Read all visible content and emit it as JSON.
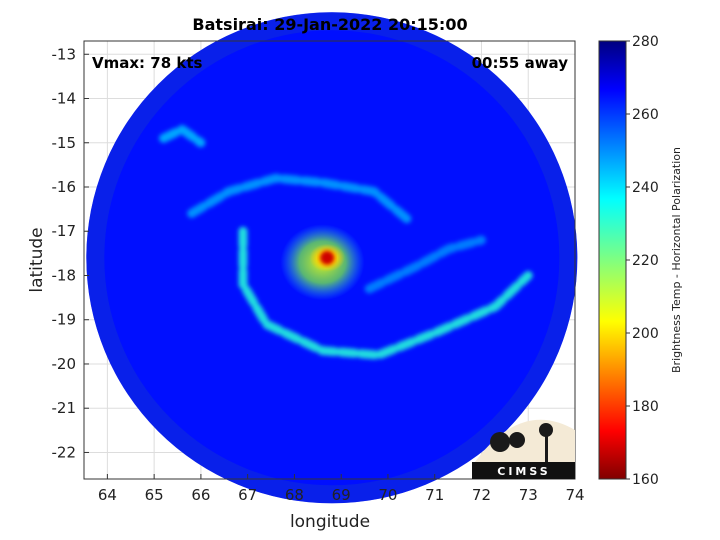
{
  "chart_data": {
    "type": "heatmap",
    "title": "Batsirai: 29-Jan-2022 20:15:00",
    "xlabel": "longitude",
    "ylabel": "latitude",
    "xlim": [
      63.5,
      74
    ],
    "ylim": [
      -22.6,
      -12.7
    ],
    "xticks": [
      64,
      65,
      66,
      67,
      68,
      69,
      70,
      71,
      72,
      73,
      74
    ],
    "yticks": [
      -13,
      -14,
      -15,
      -16,
      -17,
      -18,
      -19,
      -20,
      -21,
      -22
    ],
    "grid": true,
    "colormap": "jet",
    "colorbar": {
      "label": "Brightness Temp - Horizontal Polarization",
      "min": 160,
      "max": 280,
      "ticks": [
        160,
        180,
        200,
        220,
        240,
        260,
        280
      ]
    },
    "swath": {
      "center_lon": 68.8,
      "center_lat": -17.6,
      "radius_deg": 5.25
    },
    "features": {
      "background_temp": 265,
      "eye": {
        "lon": 68.7,
        "lat": -17.6,
        "temp": 168
      },
      "eyewall": {
        "lon": 68.6,
        "lat": -17.7,
        "temp": 212
      },
      "rainbands": [
        {
          "points": [
            [
              66.9,
              -17.0
            ],
            [
              66.9,
              -18.2
            ],
            [
              67.4,
              -19.1
            ],
            [
              68.6,
              -19.7
            ],
            [
              69.8,
              -19.8
            ],
            [
              71.0,
              -19.3
            ],
            [
              72.3,
              -18.7
            ],
            [
              73.0,
              -18.0
            ]
          ],
          "temp": 232
        },
        {
          "points": [
            [
              65.8,
              -16.6
            ],
            [
              66.6,
              -16.1
            ],
            [
              67.6,
              -15.8
            ],
            [
              68.6,
              -15.9
            ],
            [
              69.7,
              -16.1
            ],
            [
              70.5,
              -16.8
            ]
          ],
          "temp": 247
        },
        {
          "points": [
            [
              65.2,
              -14.9
            ],
            [
              65.6,
              -14.7
            ],
            [
              66.0,
              -15.0
            ]
          ],
          "temp": 244
        },
        {
          "points": [
            [
              69.6,
              -18.3
            ],
            [
              70.6,
              -17.8
            ],
            [
              71.3,
              -17.4
            ],
            [
              72.0,
              -17.2
            ]
          ],
          "temp": 250
        }
      ]
    },
    "annotations": {
      "vmax": "Vmax: 78 kts",
      "time_offset": "00:55 away"
    }
  },
  "logo": {
    "text": "CIMSS"
  }
}
